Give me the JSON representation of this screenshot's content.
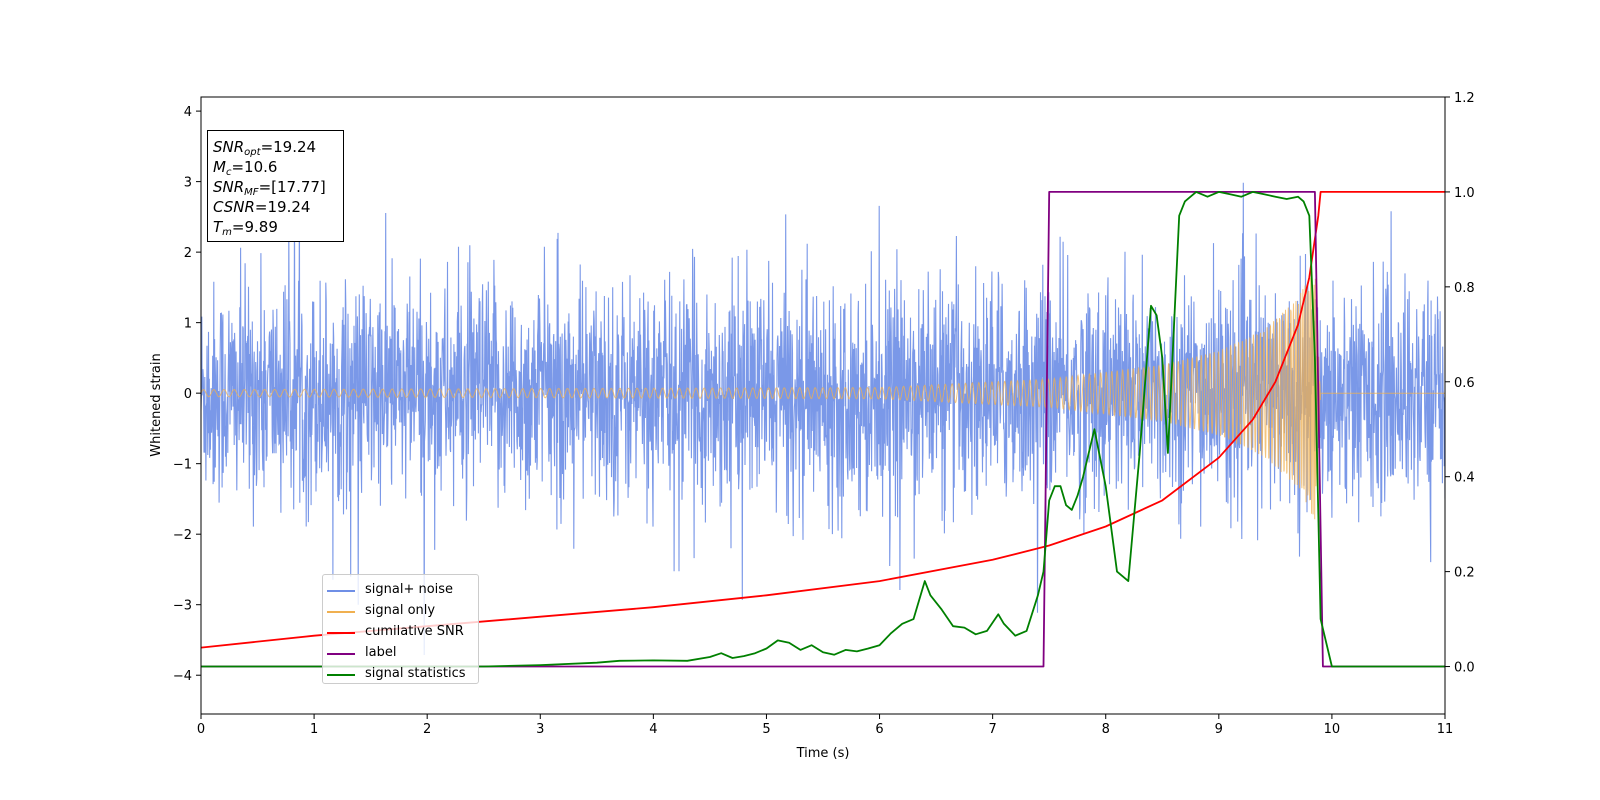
{
  "chart_data": {
    "type": "line",
    "xlabel": "Time (s)",
    "ylabel": "Whitened strain",
    "xlim": [
      0,
      11
    ],
    "ylim_left": [
      -4.55,
      4.2
    ],
    "ylim_right": [
      -0.1,
      1.2
    ],
    "x_ticks": [
      "0",
      "1",
      "2",
      "3",
      "4",
      "5",
      "6",
      "7",
      "8",
      "9",
      "10",
      "11"
    ],
    "y_ticks_left": [
      "−4",
      "−3",
      "−2",
      "−1",
      "0",
      "1",
      "2",
      "3",
      "4"
    ],
    "y_ticks_right": [
      "0.0",
      "0.2",
      "0.4",
      "0.6",
      "0.8",
      "1.0",
      "1.2"
    ],
    "legend_position": "lower-left",
    "stats": {
      "snr_opt": "19.24",
      "mc": "10.6",
      "snr_mf": "[17.77]",
      "csnr": "19.24",
      "tm": "9.89"
    },
    "series": [
      {
        "name": "signal+ noise",
        "axis": "left",
        "color": "#6f8fe6",
        "kind": "noise",
        "description_values": {
          "typical_range": [
            -2.0,
            2.0
          ],
          "max_spike": 3.8,
          "min_spike": -4.15
        }
      },
      {
        "name": "signal only",
        "axis": "left",
        "color": "#f0b050",
        "kind": "chirp",
        "envelope": {
          "t": [
            0,
            6,
            7.5,
            8.5,
            9.0,
            9.4,
            9.7,
            9.85,
            9.9
          ],
          "amp": [
            0.05,
            0.08,
            0.2,
            0.4,
            0.6,
            0.9,
            1.35,
            1.8,
            0
          ]
        },
        "end_time": 9.9
      },
      {
        "name": "cumilative SNR",
        "axis": "right",
        "color": "#ff0000",
        "x": [
          0,
          1,
          2,
          3,
          4,
          5,
          6,
          7,
          7.5,
          8,
          8.5,
          9,
          9.3,
          9.5,
          9.7,
          9.8,
          9.88,
          9.9,
          11
        ],
        "y": [
          0.04,
          0.065,
          0.085,
          0.105,
          0.125,
          0.15,
          0.18,
          0.225,
          0.255,
          0.295,
          0.35,
          0.44,
          0.52,
          0.6,
          0.72,
          0.82,
          0.95,
          1.0,
          1.0
        ]
      },
      {
        "name": "label",
        "axis": "right",
        "color": "#800080",
        "x": [
          0,
          7.45,
          7.5,
          9.85,
          9.92,
          11
        ],
        "y": [
          0,
          0,
          1,
          1,
          0,
          0
        ]
      },
      {
        "name": "signal statistics",
        "axis": "right",
        "color": "#008000",
        "x": [
          0,
          2.5,
          3.0,
          3.5,
          3.7,
          4.0,
          4.3,
          4.5,
          4.6,
          4.7,
          4.8,
          4.9,
          5.0,
          5.1,
          5.2,
          5.3,
          5.4,
          5.5,
          5.6,
          5.7,
          5.8,
          5.9,
          6.0,
          6.1,
          6.2,
          6.3,
          6.4,
          6.45,
          6.55,
          6.65,
          6.75,
          6.85,
          6.95,
          7.05,
          7.1,
          7.2,
          7.3,
          7.4,
          7.45,
          7.5,
          7.55,
          7.6,
          7.65,
          7.7,
          7.75,
          7.8,
          7.9,
          8.0,
          8.1,
          8.2,
          8.3,
          8.4,
          8.45,
          8.5,
          8.55,
          8.6,
          8.65,
          8.7,
          8.75,
          8.8,
          8.9,
          9.0,
          9.1,
          9.2,
          9.3,
          9.4,
          9.5,
          9.6,
          9.7,
          9.75,
          9.8,
          9.85,
          9.9,
          10.0,
          11
        ],
        "y": [
          0,
          0,
          0.003,
          0.008,
          0.012,
          0.013,
          0.012,
          0.02,
          0.028,
          0.018,
          0.022,
          0.028,
          0.038,
          0.055,
          0.05,
          0.035,
          0.045,
          0.03,
          0.025,
          0.035,
          0.032,
          0.038,
          0.045,
          0.07,
          0.09,
          0.1,
          0.18,
          0.15,
          0.12,
          0.085,
          0.082,
          0.068,
          0.075,
          0.11,
          0.09,
          0.065,
          0.075,
          0.15,
          0.2,
          0.35,
          0.38,
          0.38,
          0.34,
          0.33,
          0.36,
          0.4,
          0.5,
          0.38,
          0.2,
          0.18,
          0.45,
          0.76,
          0.74,
          0.65,
          0.45,
          0.7,
          0.95,
          0.98,
          0.99,
          1.0,
          0.99,
          1.0,
          0.995,
          0.99,
          1.0,
          0.995,
          0.99,
          0.985,
          0.99,
          0.98,
          0.95,
          0.65,
          0.1,
          0,
          0
        ]
      }
    ]
  }
}
